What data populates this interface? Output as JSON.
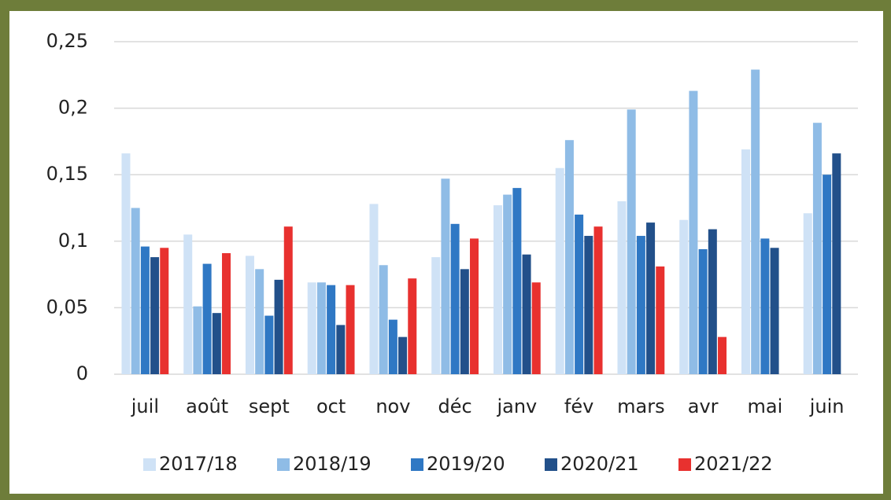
{
  "chart_data": {
    "type": "bar",
    "categories": [
      "juil",
      "août",
      "sept",
      "oct",
      "nov",
      "déc",
      "janv",
      "fév",
      "mars",
      "avr",
      "mai",
      "juin"
    ],
    "series": [
      {
        "name": "2017/18",
        "color": "#cfe2f6",
        "values": [
          0.166,
          0.105,
          0.089,
          0.069,
          0.128,
          0.088,
          0.127,
          0.155,
          0.13,
          0.116,
          0.169,
          0.121
        ]
      },
      {
        "name": "2018/19",
        "color": "#8fbce6",
        "values": [
          0.125,
          0.051,
          0.079,
          0.069,
          0.082,
          0.147,
          0.135,
          0.176,
          0.199,
          0.213,
          0.229,
          0.189
        ]
      },
      {
        "name": "2019/20",
        "color": "#2f78c4",
        "values": [
          0.096,
          0.083,
          0.044,
          0.067,
          0.041,
          0.113,
          0.14,
          0.12,
          0.104,
          0.094,
          0.102,
          0.15
        ]
      },
      {
        "name": "2020/21",
        "color": "#22508a",
        "values": [
          0.088,
          0.046,
          0.071,
          0.037,
          0.028,
          0.079,
          0.09,
          0.104,
          0.114,
          0.109,
          0.095,
          0.166
        ]
      },
      {
        "name": "2021/22",
        "color": "#e8312f",
        "values": [
          0.095,
          0.091,
          0.111,
          0.067,
          0.072,
          0.102,
          0.069,
          0.111,
          0.081,
          0.028,
          null,
          null
        ]
      }
    ],
    "ylim": [
      0,
      0.25
    ],
    "yticks": [
      0,
      {
        "value": 0.05,
        "label": "0,05"
      },
      {
        "value": 0.1,
        "label": "0,1"
      },
      {
        "value": 0.15,
        "label": "0,15"
      },
      {
        "value": 0.2,
        "label": "0,2"
      },
      {
        "value": 0.25,
        "label": "0,25"
      }
    ],
    "grid": true,
    "legend": "bottom"
  }
}
